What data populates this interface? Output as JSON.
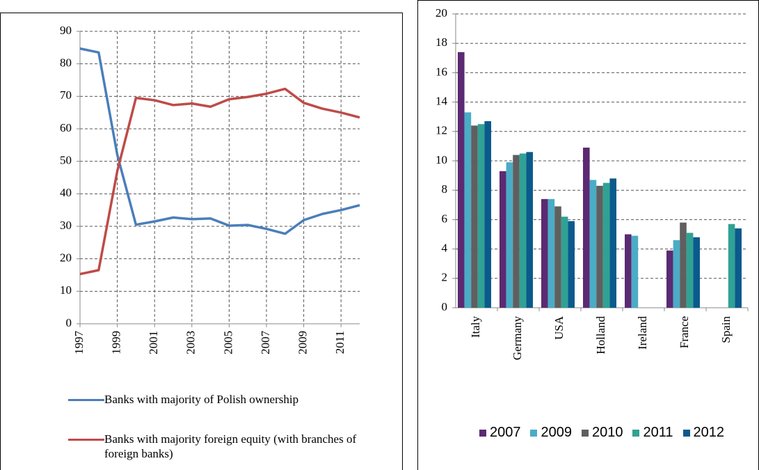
{
  "chart_data": [
    {
      "type": "line",
      "x": [
        1997,
        1998,
        1999,
        2000,
        2001,
        2002,
        2003,
        2004,
        2005,
        2006,
        2007,
        2008,
        2009,
        2010,
        2011,
        2012
      ],
      "xlim": [
        1997,
        2012
      ],
      "xticks": [
        1997,
        1999,
        2001,
        2003,
        2005,
        2007,
        2009,
        2011
      ],
      "ylim": [
        0,
        90
      ],
      "yticks": [
        0,
        10,
        20,
        30,
        40,
        50,
        60,
        70,
        80,
        90
      ],
      "grid": true,
      "series": [
        {
          "name": "Banks with majority of Polish ownership",
          "color": "#4a7ebb",
          "values": [
            84.7,
            83.5,
            52,
            30.5,
            31.5,
            32.7,
            32.2,
            32.4,
            30.2,
            30.4,
            29.2,
            27.7,
            31.9,
            33.8,
            35,
            36.5
          ]
        },
        {
          "name": "Banks with majority foreign equity (with branches of foreign banks)",
          "color": "#be4b48",
          "values": [
            15.3,
            16.5,
            47,
            69.5,
            68.8,
            67.3,
            67.8,
            66.8,
            69.1,
            69.8,
            70.8,
            72.3,
            68,
            66.2,
            65,
            63.5
          ]
        }
      ]
    },
    {
      "type": "bar",
      "categories": [
        "Italy",
        "Germany",
        "USA",
        "Holland",
        "Ireland",
        "France",
        "Spain"
      ],
      "ylim": [
        0,
        20
      ],
      "yticks": [
        0,
        2,
        4,
        6,
        8,
        10,
        12,
        14,
        16,
        18,
        20
      ],
      "grid": true,
      "series": [
        {
          "name": "2007",
          "color": "#5b2a72",
          "values": [
            17.4,
            9.3,
            7.4,
            10.9,
            5.0,
            3.9,
            null
          ]
        },
        {
          "name": "2009",
          "color": "#4bacc6",
          "values": [
            13.3,
            9.9,
            7.4,
            8.7,
            4.9,
            4.6,
            null
          ]
        },
        {
          "name": "2010",
          "color": "#5f5f5f",
          "values": [
            12.4,
            10.4,
            6.9,
            8.3,
            null,
            5.8,
            null
          ]
        },
        {
          "name": "2011",
          "color": "#2fa294",
          "values": [
            12.5,
            10.5,
            6.2,
            8.5,
            null,
            5.1,
            5.7
          ]
        },
        {
          "name": "2012",
          "color": "#0b5a8c",
          "values": [
            12.7,
            10.6,
            5.9,
            8.8,
            null,
            4.8,
            5.4
          ]
        }
      ]
    }
  ]
}
